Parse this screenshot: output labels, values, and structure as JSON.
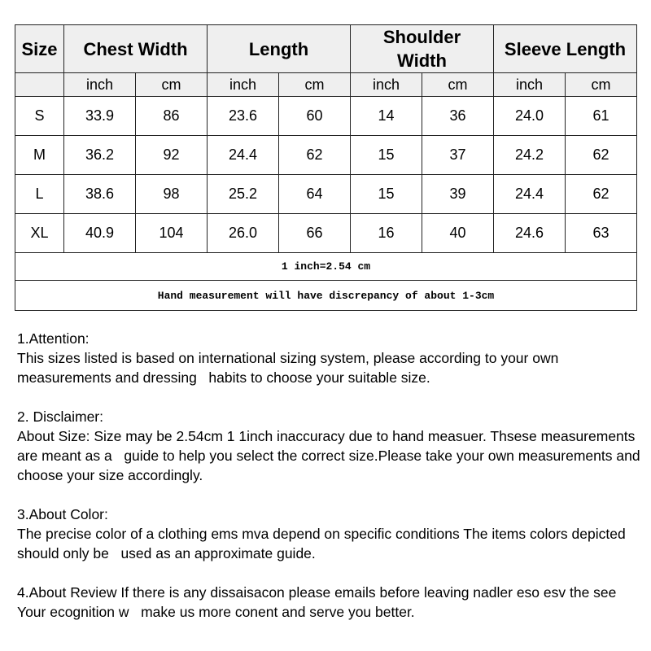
{
  "table": {
    "headers": [
      "Size",
      "Chest Width",
      "Length",
      "Shoulder Width",
      "Sleeve Length"
    ],
    "units": [
      "inch",
      "cm",
      "inch",
      "cm",
      "inch",
      "cm",
      "inch",
      "cm"
    ],
    "rows": [
      [
        "S",
        "33.9",
        "86",
        "23.6",
        "60",
        "14",
        "36",
        "24.0",
        "61"
      ],
      [
        "M",
        "36.2",
        "92",
        "24.4",
        "62",
        "15",
        "37",
        "24.2",
        "62"
      ],
      [
        "L",
        "38.6",
        "98",
        "25.2",
        "64",
        "15",
        "39",
        "24.4",
        "62"
      ],
      [
        "XL",
        "40.9",
        "104",
        "26.0",
        "66",
        "16",
        "40",
        "24.6",
        "63"
      ]
    ],
    "conversion": "1 inch=2.54 cm",
    "discrepancy": "Hand measurement will have discrepancy of about 1-3cm"
  },
  "notes": [
    {
      "title": "1.Attention:",
      "body": "This sizes listed is based on international sizing system, please according to your own measurements and dressing   habits to choose your suitable size."
    },
    {
      "title": "2. Disclaimer:",
      "body": "About Size: Size may be 2.54cm 1 1inch inaccuracy due to hand measuer. Thsese measurements are meant as a   guide to help you select the correct size.Please take your own measurements and choose your size accordingly."
    },
    {
      "title": "3.About Color:",
      "body": "The precise color of a clothing ems mva depend on specific conditions The items colors depicted should only be   used as an approximate guide."
    },
    {
      "title": "",
      "body": "4.About Review If there is any dissaisacon please emails before leaving nadler eso esv the see Your ecognition w   make us more conent and serve you better."
    }
  ]
}
